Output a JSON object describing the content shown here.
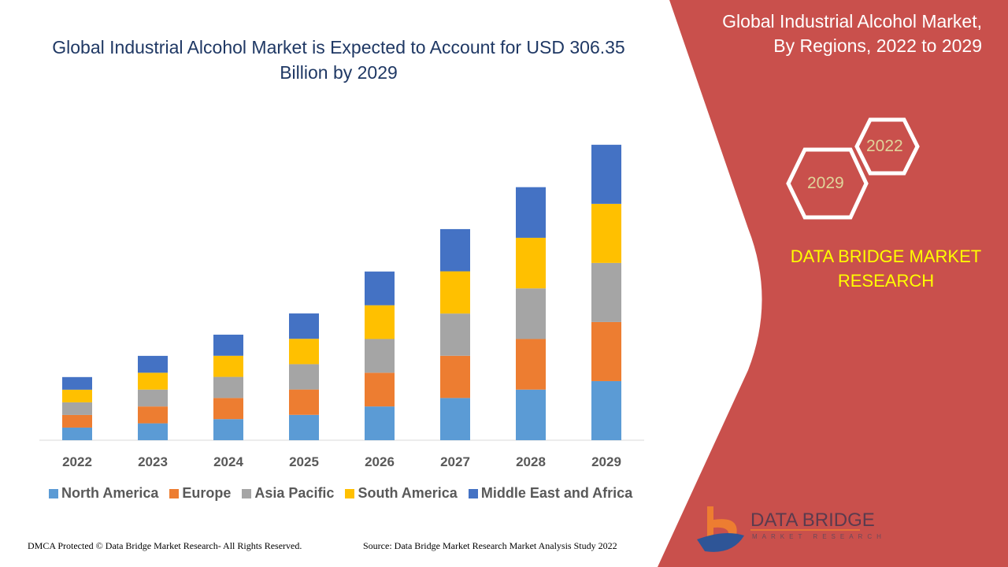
{
  "title": "Global Industrial Alcohol Market is Expected to Account for USD 306.35 Billion by 2029",
  "side_panel": {
    "title": "Global Industrial Alcohol Market, By Regions, 2022 to 2029",
    "hex_labels": [
      "2022",
      "2029"
    ],
    "brand": "DATA BRIDGE MARKET RESEARCH",
    "logo_text": "DATA BRIDGE",
    "logo_subtext": "MARKET RESEARCH",
    "panel_color": "#c9504c"
  },
  "footer": {
    "left": "DMCA Protected © Data Bridge Market Research- All Rights Reserved.",
    "right": "Source: Data Bridge Market Research Market Analysis Study 2022"
  },
  "chart_data": {
    "type": "bar",
    "stacked": true,
    "categories": [
      "2022",
      "2023",
      "2024",
      "2025",
      "2026",
      "2027",
      "2028",
      "2029"
    ],
    "series": [
      {
        "name": "North America",
        "color": "#5b9bd5",
        "values": [
          13.1,
          17.5,
          21.9,
          26.3,
          35.0,
          43.8,
          52.5,
          61.3
        ]
      },
      {
        "name": "Europe",
        "color": "#ed7d31",
        "values": [
          13.1,
          17.5,
          21.9,
          26.3,
          35.0,
          43.8,
          52.5,
          61.3
        ]
      },
      {
        "name": "Asia Pacific",
        "color": "#a5a5a5",
        "values": [
          13.1,
          17.5,
          21.9,
          26.3,
          35.0,
          43.8,
          52.5,
          61.3
        ]
      },
      {
        "name": "South America",
        "color": "#ffc000",
        "values": [
          13.1,
          17.5,
          21.9,
          26.3,
          35.0,
          43.8,
          52.5,
          61.3
        ]
      },
      {
        "name": "Middle East and Africa",
        "color": "#4472c4",
        "values": [
          13.1,
          17.5,
          21.9,
          26.3,
          35.0,
          43.8,
          52.5,
          61.3
        ]
      }
    ],
    "unit": "USD Billion",
    "ylim": [
      0,
      306.35
    ],
    "grid": false,
    "legend": "bottom"
  }
}
